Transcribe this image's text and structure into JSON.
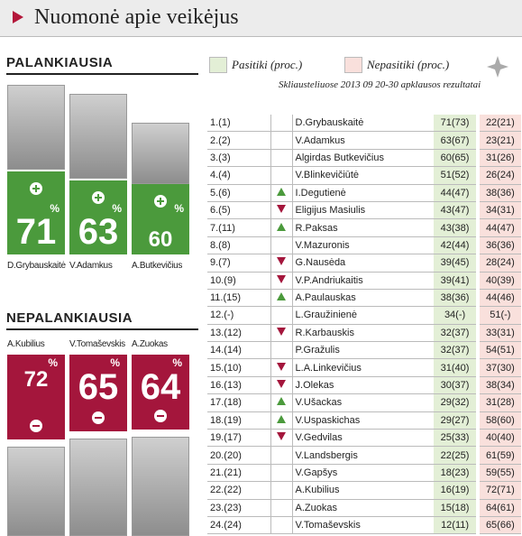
{
  "header": {
    "title": "Nuomonė apie veikėjus"
  },
  "legend": {
    "trust": "Pasitiki (proc.)",
    "distrust": "Nepasitiki (proc.)",
    "note": "Skliausteliuose 2013 09 20-30 apklausos rezultatai"
  },
  "favorable": {
    "heading": "PALANKIAUSIA",
    "percent_sign": "%",
    "color": "#4b9a3c",
    "people": [
      {
        "name": "D.Grybauskaitė",
        "value": 71
      },
      {
        "name": "V.Adamkus",
        "value": 63
      },
      {
        "name": "A.Butkevičius",
        "value": 60
      }
    ]
  },
  "unfavorable": {
    "heading": "NEPALANKIAUSIA",
    "percent_sign": "%",
    "color": "#a4163c",
    "people": [
      {
        "name": "A.Kubilius",
        "value": 72
      },
      {
        "name": "V.Tomaševskis",
        "value": 65
      },
      {
        "name": "A.Zuokas",
        "value": 64
      }
    ]
  },
  "table": {
    "rows": [
      {
        "rank": "1.(1)",
        "trend": null,
        "name": "D.Grybauskaitė",
        "trust": "71(73)",
        "distrust": "22(21)"
      },
      {
        "rank": "2.(2)",
        "trend": null,
        "name": "V.Adamkus",
        "trust": "63(67)",
        "distrust": "23(21)"
      },
      {
        "rank": "3.(3)",
        "trend": null,
        "name": "Algirdas Butkevičius",
        "trust": "60(65)",
        "distrust": "31(26)"
      },
      {
        "rank": "4.(4)",
        "trend": null,
        "name": "V.Blinkevičiūtė",
        "trust": "51(52)",
        "distrust": "26(24)"
      },
      {
        "rank": "5.(6)",
        "trend": "up",
        "name": "I.Degutienė",
        "trust": "44(47)",
        "distrust": "38(36)"
      },
      {
        "rank": "6.(5)",
        "trend": "down",
        "name": "Eligijus Masiulis",
        "trust": "43(47)",
        "distrust": "34(31)"
      },
      {
        "rank": "7.(11)",
        "trend": "up",
        "name": "R.Paksas",
        "trust": "43(38)",
        "distrust": "44(47)"
      },
      {
        "rank": "8.(8)",
        "trend": null,
        "name": "V.Mazuronis",
        "trust": "42(44)",
        "distrust": "36(36)"
      },
      {
        "rank": "9.(7)",
        "trend": "down",
        "name": "G.Nausėda",
        "trust": "39(45)",
        "distrust": "28(24)"
      },
      {
        "rank": "10.(9)",
        "trend": "down",
        "name": "V.P.Andriukaitis",
        "trust": "39(41)",
        "distrust": "40(39)"
      },
      {
        "rank": "11.(15)",
        "trend": "up",
        "name": "A.Paulauskas",
        "trust": "38(36)",
        "distrust": "44(46)"
      },
      {
        "rank": "12.(-)",
        "trend": null,
        "name": "L.Graužinienė",
        "trust": "34(-)",
        "distrust": "51(-)"
      },
      {
        "rank": "13.(12)",
        "trend": "down",
        "name": "R.Karbauskis",
        "trust": "32(37)",
        "distrust": "33(31)"
      },
      {
        "rank": "14.(14)",
        "trend": null,
        "name": "P.Gražulis",
        "trust": "32(37)",
        "distrust": "54(51)"
      },
      {
        "rank": "15.(10)",
        "trend": "down",
        "name": "L.A.Linkevičius",
        "trust": "31(40)",
        "distrust": "37(30)"
      },
      {
        "rank": "16.(13)",
        "trend": "down",
        "name": "J.Olekas",
        "trust": "30(37)",
        "distrust": "38(34)"
      },
      {
        "rank": "17.(18)",
        "trend": "up",
        "name": "V.Ušackas",
        "trust": "29(32)",
        "distrust": "31(28)"
      },
      {
        "rank": "18.(19)",
        "trend": "up",
        "name": "V.Uspaskichas",
        "trust": "29(27)",
        "distrust": "58(60)"
      },
      {
        "rank": "19.(17)",
        "trend": "down",
        "name": "V.Gedvilas",
        "trust": "25(33)",
        "distrust": "40(40)"
      },
      {
        "rank": "20.(20)",
        "trend": null,
        "name": "V.Landsbergis",
        "trust": "22(25)",
        "distrust": "61(59)"
      },
      {
        "rank": "21.(21)",
        "trend": null,
        "name": "V.Gapšys",
        "trust": "18(23)",
        "distrust": "59(55)"
      },
      {
        "rank": "22.(22)",
        "trend": null,
        "name": "A.Kubilius",
        "trust": "16(19)",
        "distrust": "72(71)"
      },
      {
        "rank": "23.(23)",
        "trend": null,
        "name": "A.Zuokas",
        "trust": "15(18)",
        "distrust": "64(61)"
      },
      {
        "rank": "24.(24)",
        "trend": null,
        "name": "V.Tomaševskis",
        "trust": "12(11)",
        "distrust": "65(66)"
      }
    ]
  }
}
